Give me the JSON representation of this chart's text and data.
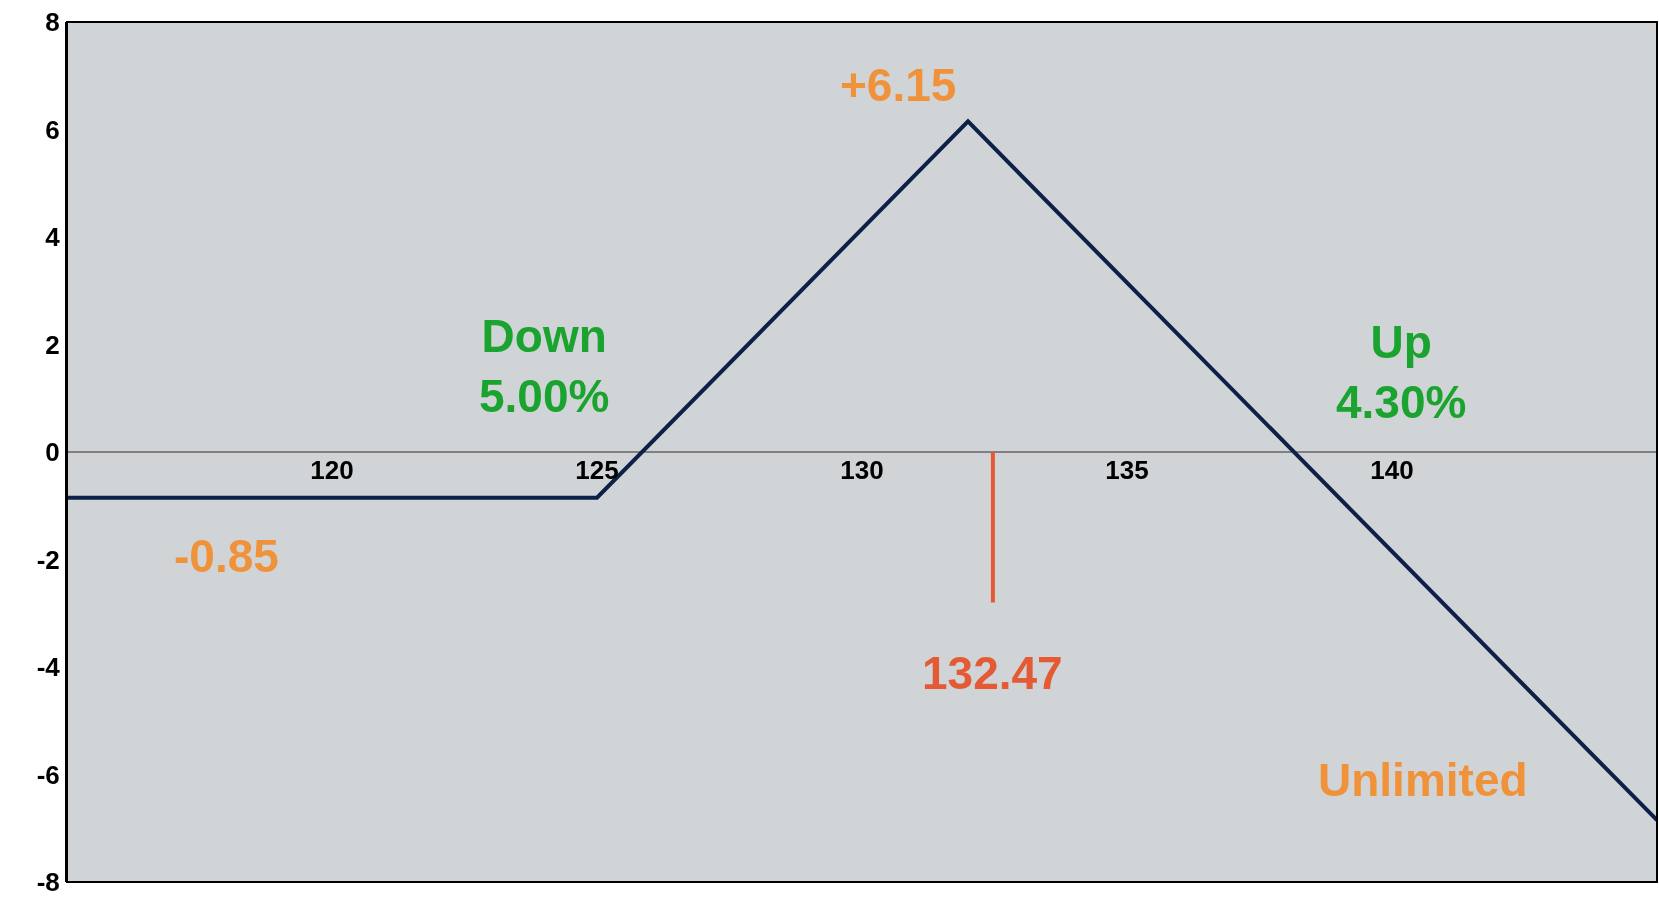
{
  "chart_data": {
    "type": "line",
    "xlim": [
      115,
      145
    ],
    "xticks": [
      120,
      125,
      130,
      135,
      140
    ],
    "ylim": [
      -8,
      8
    ],
    "yticks": [
      -8,
      -6,
      -4,
      -2,
      0,
      2,
      4,
      6,
      8
    ],
    "grid": false,
    "marker": "none",
    "line_style": "solid",
    "series": [
      {
        "color": "#0c2048",
        "x": [
          115,
          125,
          132,
          145
        ],
        "values": [
          -0.85,
          -0.85,
          6.15,
          -6.85
        ]
      },
      {
        "color": "#e45a35",
        "x": [
          132.47,
          132.47
        ],
        "values": [
          0,
          -2.8
        ]
      }
    ],
    "annotations": [
      {
        "text": "+6.15",
        "x": 132,
        "y": 6.15
      },
      {
        "text": "-0.85",
        "x": 118,
        "y": -0.85
      },
      "Down\n5.00%",
      {
        "text": "Up\n4.30%",
        "x": 138.1,
        "y": 0
      },
      "Unlimited",
      {
        "text": "132.47",
        "x": 132.47,
        "y": -2.8
      }
    ]
  }
}
